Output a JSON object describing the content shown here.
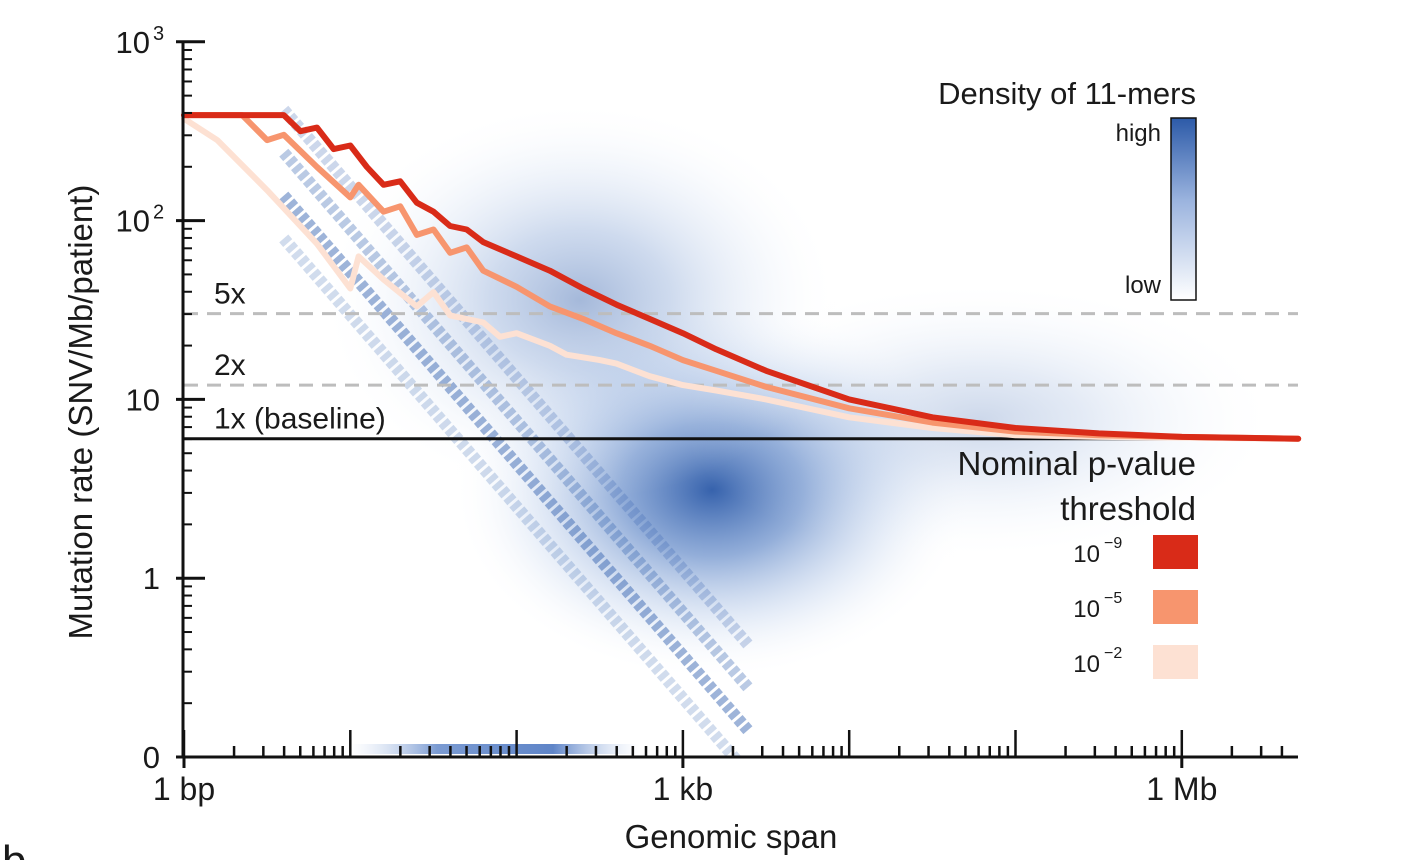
{
  "chart_data": {
    "type": "line",
    "ylabel": "Mutation rate (SNV/Mb/patient)",
    "xlabel": "Genomic span",
    "x_scale": "log10",
    "y_scale": "log10 (with 0 at bottom)",
    "xlim_log10": [
      0,
      6.7
    ],
    "ylim_log10": [
      -1,
      3
    ],
    "x_tick_labels": [
      {
        "label": "1 bp",
        "log10": 0
      },
      {
        "label": "1 kb",
        "log10": 3
      },
      {
        "label": "1 Mb",
        "log10": 6
      }
    ],
    "y_tick_labels": [
      {
        "label": "0",
        "log10": -1,
        "exp": ""
      },
      {
        "label": "1",
        "log10": 0,
        "exp": ""
      },
      {
        "label": "10",
        "log10": 1,
        "exp": ""
      },
      {
        "label": "10",
        "log10": 2,
        "exp": "2"
      },
      {
        "label": "10",
        "log10": 3,
        "exp": "3"
      }
    ],
    "reference_lines": [
      {
        "label": "1x (baseline)",
        "y_log10": 0.78,
        "style": "solid"
      },
      {
        "label": "2x",
        "y_log10": 1.08,
        "style": "dashed"
      },
      {
        "label": "5x",
        "y_log10": 1.48,
        "style": "dashed"
      }
    ],
    "series": [
      {
        "name": "10⁻⁹",
        "base": "10",
        "exp": "−9",
        "color": "#d92b18",
        "points": [
          [
            0.0,
            2.59
          ],
          [
            0.6,
            2.59
          ],
          [
            0.7,
            2.5
          ],
          [
            0.8,
            2.52
          ],
          [
            0.9,
            2.4
          ],
          [
            1.0,
            2.42
          ],
          [
            1.1,
            2.3
          ],
          [
            1.2,
            2.2
          ],
          [
            1.3,
            2.22
          ],
          [
            1.4,
            2.1
          ],
          [
            1.5,
            2.05
          ],
          [
            1.6,
            1.97
          ],
          [
            1.7,
            1.95
          ],
          [
            1.8,
            1.88
          ],
          [
            2.0,
            1.8
          ],
          [
            2.2,
            1.72
          ],
          [
            2.4,
            1.62
          ],
          [
            2.6,
            1.53
          ],
          [
            2.8,
            1.45
          ],
          [
            3.0,
            1.37
          ],
          [
            3.2,
            1.28
          ],
          [
            3.5,
            1.16
          ],
          [
            4.0,
            1.0
          ],
          [
            4.5,
            0.9
          ],
          [
            5.0,
            0.84
          ],
          [
            5.5,
            0.81
          ],
          [
            6.0,
            0.79
          ],
          [
            6.7,
            0.78
          ]
        ]
      },
      {
        "name": "10⁻⁵",
        "base": "10",
        "exp": "−5",
        "color": "#f7956e",
        "points": [
          [
            0.0,
            2.59
          ],
          [
            0.35,
            2.59
          ],
          [
            0.5,
            2.45
          ],
          [
            0.6,
            2.48
          ],
          [
            0.8,
            2.3
          ],
          [
            1.0,
            2.13
          ],
          [
            1.05,
            2.2
          ],
          [
            1.2,
            2.05
          ],
          [
            1.3,
            2.08
          ],
          [
            1.4,
            1.92
          ],
          [
            1.5,
            1.95
          ],
          [
            1.6,
            1.82
          ],
          [
            1.7,
            1.85
          ],
          [
            1.8,
            1.72
          ],
          [
            2.0,
            1.63
          ],
          [
            2.2,
            1.52
          ],
          [
            2.4,
            1.45
          ],
          [
            2.6,
            1.37
          ],
          [
            2.8,
            1.3
          ],
          [
            3.0,
            1.22
          ],
          [
            3.2,
            1.16
          ],
          [
            3.5,
            1.07
          ],
          [
            4.0,
            0.95
          ],
          [
            4.5,
            0.87
          ],
          [
            5.0,
            0.82
          ],
          [
            5.5,
            0.8
          ],
          [
            6.0,
            0.79
          ],
          [
            6.7,
            0.78
          ]
        ]
      },
      {
        "name": "10⁻²",
        "base": "10",
        "exp": "−2",
        "color": "#fde1d3",
        "points": [
          [
            0.0,
            2.57
          ],
          [
            0.2,
            2.45
          ],
          [
            0.5,
            2.17
          ],
          [
            0.8,
            1.87
          ],
          [
            1.0,
            1.62
          ],
          [
            1.05,
            1.8
          ],
          [
            1.2,
            1.67
          ],
          [
            1.4,
            1.52
          ],
          [
            1.5,
            1.6
          ],
          [
            1.6,
            1.47
          ],
          [
            1.8,
            1.43
          ],
          [
            1.9,
            1.35
          ],
          [
            2.0,
            1.37
          ],
          [
            2.2,
            1.3
          ],
          [
            2.3,
            1.25
          ],
          [
            2.5,
            1.22
          ],
          [
            2.6,
            1.2
          ],
          [
            2.8,
            1.13
          ],
          [
            3.0,
            1.08
          ],
          [
            3.2,
            1.05
          ],
          [
            3.5,
            1.0
          ],
          [
            4.0,
            0.9
          ],
          [
            4.5,
            0.84
          ],
          [
            5.0,
            0.8
          ],
          [
            5.5,
            0.79
          ],
          [
            6.7,
            0.78
          ]
        ]
      }
    ],
    "density_legend": {
      "title": "Density of 11-mers",
      "high_label": "high",
      "low_label": "low",
      "colors": [
        "#2c5aa8",
        "#ffffff"
      ]
    },
    "threshold_legend": {
      "title_line1": "Nominal p-value",
      "title_line2": "threshold"
    },
    "panel_letter": "b"
  }
}
